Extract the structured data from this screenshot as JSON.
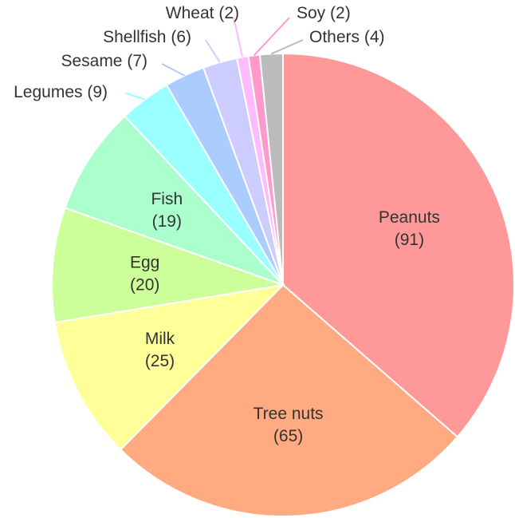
{
  "chart_data": {
    "type": "pie",
    "title": "",
    "categories": [
      "Peanuts",
      "Tree nuts",
      "Milk",
      "Egg",
      "Fish",
      "Legumes",
      "Sesame",
      "Shellfish",
      "Wheat",
      "Soy",
      "Others"
    ],
    "values": [
      91,
      65,
      25,
      20,
      19,
      9,
      7,
      6,
      2,
      2,
      4
    ],
    "colors": [
      "#ff9999",
      "#ffaa80",
      "#ffff99",
      "#ccff99",
      "#aaffcc",
      "#99ffff",
      "#aaccff",
      "#ccccff",
      "#ffbbff",
      "#ff99cc",
      "#bbbbbb"
    ],
    "label_placement": [
      "inside",
      "inside",
      "inside",
      "inside",
      "inside",
      "outside",
      "outside",
      "outside",
      "outside",
      "outside",
      "outside"
    ]
  }
}
